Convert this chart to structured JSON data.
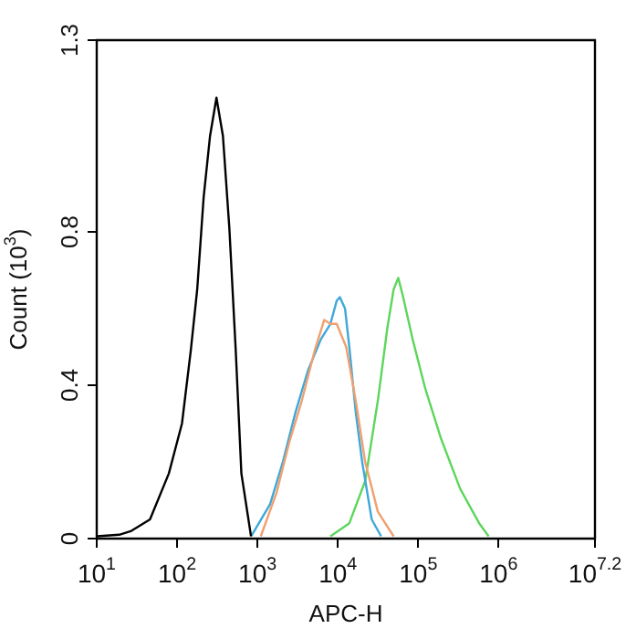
{
  "chart_data": {
    "type": "line",
    "xlabel": "APC-H",
    "ylabel": "Count (10$^{3}$)",
    "log": "x",
    "grid": false,
    "legend": false,
    "marker": "none",
    "line_style": "solid",
    "xlim": [
      10,
      15848932
    ],
    "xticks": [
      {
        "value": 10,
        "label": "10$^{1}$"
      },
      {
        "value": 100,
        "label": "10$^{2}$"
      },
      {
        "value": 1000,
        "label": "10$^{3}$"
      },
      {
        "value": 10000,
        "label": "10$^{4}$"
      },
      {
        "value": 100000,
        "label": "10$^{5}$"
      },
      {
        "value": 1000000,
        "label": "10$^{6}$"
      },
      {
        "value": 15848932,
        "label": "10$^{7.2}$"
      }
    ],
    "ylim": [
      0,
      1.3
    ],
    "yticks": [
      0,
      0.4,
      0.8,
      1.3
    ],
    "series": [
      {
        "color": "#000000",
        "x": [
          10,
          19,
          27,
          46,
          79,
          115,
          148,
          178,
          214,
          257,
          309,
          372,
          447,
          537,
          631,
          832
        ],
        "values": [
          0.006,
          0.01,
          0.02,
          0.05,
          0.17,
          0.3,
          0.49,
          0.65,
          0.89,
          1.05,
          1.15,
          1.05,
          0.81,
          0.49,
          0.17,
          0.006
        ]
      },
      {
        "color": "#f0a070",
        "x": [
          1100,
          1730,
          2480,
          3570,
          5150,
          6760,
          8090,
          9680,
          12700,
          16700,
          21900,
          31500,
          49500
        ],
        "values": [
          0.006,
          0.12,
          0.25,
          0.36,
          0.49,
          0.57,
          0.56,
          0.56,
          0.5,
          0.36,
          0.2,
          0.07,
          0.006
        ]
      },
      {
        "color": "#3fa8d8",
        "x": [
          836,
          1440,
          2070,
          2980,
          4280,
          6160,
          8090,
          9680,
          10600,
          12300,
          13900,
          16700,
          20100,
          26400,
          34600
        ],
        "values": [
          0.006,
          0.09,
          0.2,
          0.33,
          0.44,
          0.52,
          0.56,
          0.62,
          0.63,
          0.6,
          0.5,
          0.33,
          0.2,
          0.05,
          0.006
        ]
      },
      {
        "color": "#5cd65c",
        "x": [
          8090,
          13900,
          21900,
          31500,
          41400,
          49500,
          56500,
          65000,
          85300,
          123000,
          193000,
          333000,
          574000,
          753000
        ],
        "values": [
          0.006,
          0.04,
          0.15,
          0.36,
          0.55,
          0.65,
          0.68,
          0.63,
          0.52,
          0.39,
          0.26,
          0.13,
          0.04,
          0.006
        ]
      }
    ]
  }
}
